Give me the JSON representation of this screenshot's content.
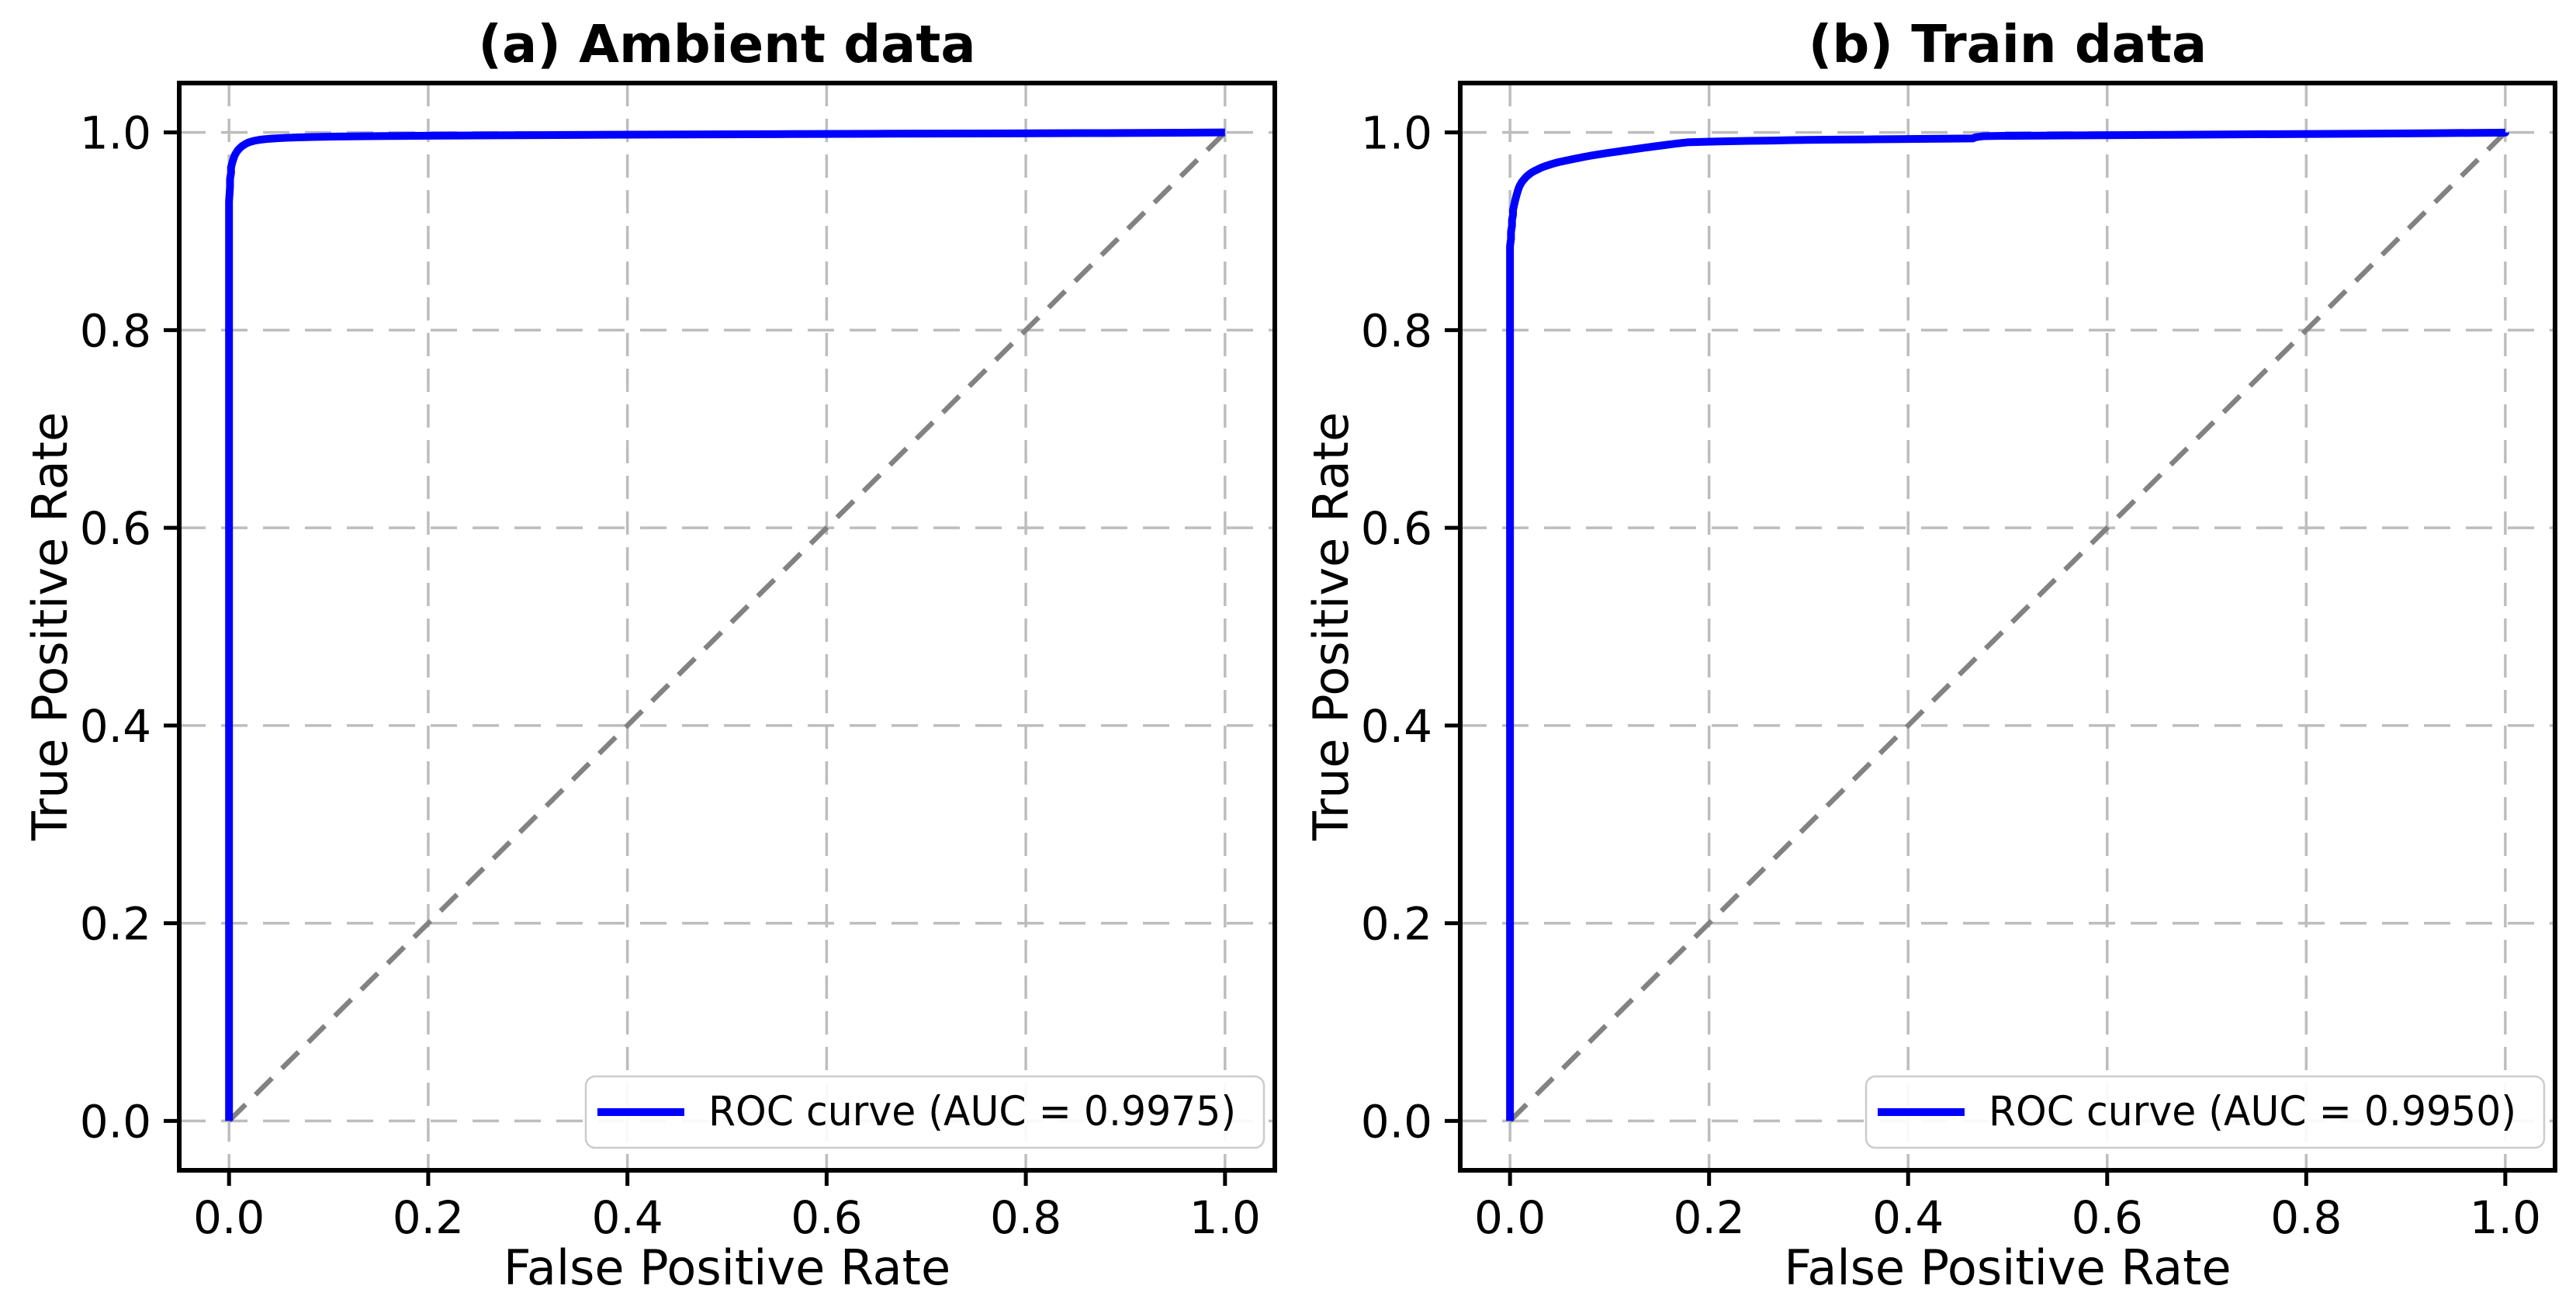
{
  "figure": {
    "background": "#ffffff",
    "grid_color": "#bdbdbd",
    "spine_color": "#000000",
    "text_color": "#000000",
    "legend_border_color": "#cccccc",
    "legend_background": "#ffffff"
  },
  "chart_data": [
    {
      "type": "line",
      "title": "(a) Ambient data",
      "xlabel": "False Positive Rate",
      "ylabel": "True Positive Rate",
      "xlim": [
        -0.05,
        1.05
      ],
      "ylim": [
        -0.05,
        1.05
      ],
      "xticks": [
        "0.0",
        "0.2",
        "0.4",
        "0.6",
        "0.8",
        "1.0"
      ],
      "yticks": [
        "0.0",
        "0.2",
        "0.4",
        "0.6",
        "0.8",
        "1.0"
      ],
      "grid": true,
      "auc": 0.9975,
      "legend": {
        "label": "ROC curve (AUC = 0.9975)",
        "position": "lower right"
      },
      "series": [
        {
          "name": "ROC curve",
          "color": "#0000ff",
          "style": "solid",
          "points": [
            [
              0,
              0
            ],
            [
              0,
              0.93
            ],
            [
              0.001,
              0.945
            ],
            [
              0.001,
              0.953
            ],
            [
              0.002,
              0.959
            ],
            [
              0.002,
              0.9645
            ],
            [
              0.003,
              0.9685
            ],
            [
              0.004,
              0.972
            ],
            [
              0.005,
              0.975
            ],
            [
              0.006,
              0.9775
            ],
            [
              0.0075,
              0.98
            ],
            [
              0.009,
              0.9822
            ],
            [
              0.011,
              0.9843
            ],
            [
              0.013,
              0.9861
            ],
            [
              0.0155,
              0.9878
            ],
            [
              0.018,
              0.9892
            ],
            [
              0.021,
              0.9904
            ],
            [
              0.0245,
              0.9914
            ],
            [
              0.029,
              0.9923
            ],
            [
              0.034,
              0.993
            ],
            [
              0.04,
              0.9936
            ],
            [
              0.048,
              0.9941
            ],
            [
              0.058,
              0.9946
            ],
            [
              0.07,
              0.995
            ],
            [
              0.085,
              0.9954
            ],
            [
              0.105,
              0.9958
            ],
            [
              0.13,
              0.9961
            ],
            [
              0.16,
              0.9964
            ],
            [
              0.2,
              0.9967
            ],
            [
              0.25,
              0.997
            ],
            [
              0.31,
              0.9973
            ],
            [
              0.38,
              0.9977
            ],
            [
              0.46,
              0.998
            ],
            [
              0.55,
              0.9983
            ],
            [
              0.65,
              0.9987
            ],
            [
              0.76,
              0.999
            ],
            [
              0.88,
              0.9994
            ],
            [
              1,
              1
            ]
          ]
        },
        {
          "name": "chance diagonal",
          "color": "#828282",
          "style": "dashed",
          "points": [
            [
              0,
              0
            ],
            [
              1,
              1
            ]
          ]
        }
      ]
    },
    {
      "type": "line",
      "title": "(b) Train data",
      "xlabel": "False Positive Rate",
      "ylabel": "True Positive Rate",
      "xlim": [
        -0.05,
        1.05
      ],
      "ylim": [
        -0.05,
        1.05
      ],
      "xticks": [
        "0.0",
        "0.2",
        "0.4",
        "0.6",
        "0.8",
        "1.0"
      ],
      "yticks": [
        "0.0",
        "0.2",
        "0.4",
        "0.6",
        "0.8",
        "1.0"
      ],
      "grid": true,
      "auc": 0.995,
      "legend": {
        "label": "ROC curve (AUC = 0.9950)",
        "position": "lower right"
      },
      "series": [
        {
          "name": "ROC curve",
          "color": "#0000ff",
          "style": "solid",
          "points": [
            [
              0,
              0
            ],
            [
              0,
              0.885
            ],
            [
              0.001,
              0.8925
            ],
            [
              0.001,
              0.8995
            ],
            [
              0.002,
              0.9055
            ],
            [
              0.002,
              0.9115
            ],
            [
              0.003,
              0.9165
            ],
            [
              0.003,
              0.9215
            ],
            [
              0.004,
              0.926
            ],
            [
              0.005,
              0.9305
            ],
            [
              0.006,
              0.9345
            ],
            [
              0.007,
              0.938
            ],
            [
              0.008,
              0.9415
            ],
            [
              0.009,
              0.9445
            ],
            [
              0.0105,
              0.9475
            ],
            [
              0.012,
              0.95
            ],
            [
              0.014,
              0.9525
            ],
            [
              0.016,
              0.9548
            ],
            [
              0.0185,
              0.957
            ],
            [
              0.021,
              0.959
            ],
            [
              0.024,
              0.9608
            ],
            [
              0.0275,
              0.9625
            ],
            [
              0.031,
              0.9642
            ],
            [
              0.035,
              0.9658
            ],
            [
              0.0395,
              0.9673
            ],
            [
              0.044,
              0.9687
            ],
            [
              0.049,
              0.97
            ],
            [
              0.055,
              0.9713
            ],
            [
              0.061,
              0.9726
            ],
            [
              0.0675,
              0.9739
            ],
            [
              0.074,
              0.9752
            ],
            [
              0.081,
              0.9765
            ],
            [
              0.089,
              0.9778
            ],
            [
              0.097,
              0.9791
            ],
            [
              0.106,
              0.9804
            ],
            [
              0.115,
              0.9817
            ],
            [
              0.1245,
              0.983
            ],
            [
              0.134,
              0.9844
            ],
            [
              0.1445,
              0.9858
            ],
            [
              0.155,
              0.9872
            ],
            [
              0.166,
              0.9886
            ],
            [
              0.178,
              0.99
            ],
            [
              0.195,
              0.9905
            ],
            [
              0.215,
              0.991
            ],
            [
              0.24,
              0.9915
            ],
            [
              0.265,
              0.9918
            ],
            [
              0.28,
              0.9922
            ],
            [
              0.3,
              0.9925
            ],
            [
              0.33,
              0.9928
            ],
            [
              0.36,
              0.993
            ],
            [
              0.39,
              0.9933
            ],
            [
              0.42,
              0.9936
            ],
            [
              0.445,
              0.9938
            ],
            [
              0.465,
              0.994
            ],
            [
              0.468,
              0.9952
            ],
            [
              0.475,
              0.9962
            ],
            [
              0.49,
              0.9965
            ],
            [
              0.52,
              0.9967
            ],
            [
              0.56,
              0.997
            ],
            [
              0.61,
              0.9973
            ],
            [
              0.66,
              0.9976
            ],
            [
              0.72,
              0.998
            ],
            [
              0.79,
              0.9984
            ],
            [
              0.86,
              0.9988
            ],
            [
              0.93,
              0.9993
            ],
            [
              1,
              0.9998
            ],
            [
              1,
              1
            ]
          ]
        },
        {
          "name": "chance diagonal",
          "color": "#828282",
          "style": "dashed",
          "points": [
            [
              0,
              0
            ],
            [
              1,
              1
            ]
          ]
        }
      ]
    }
  ]
}
